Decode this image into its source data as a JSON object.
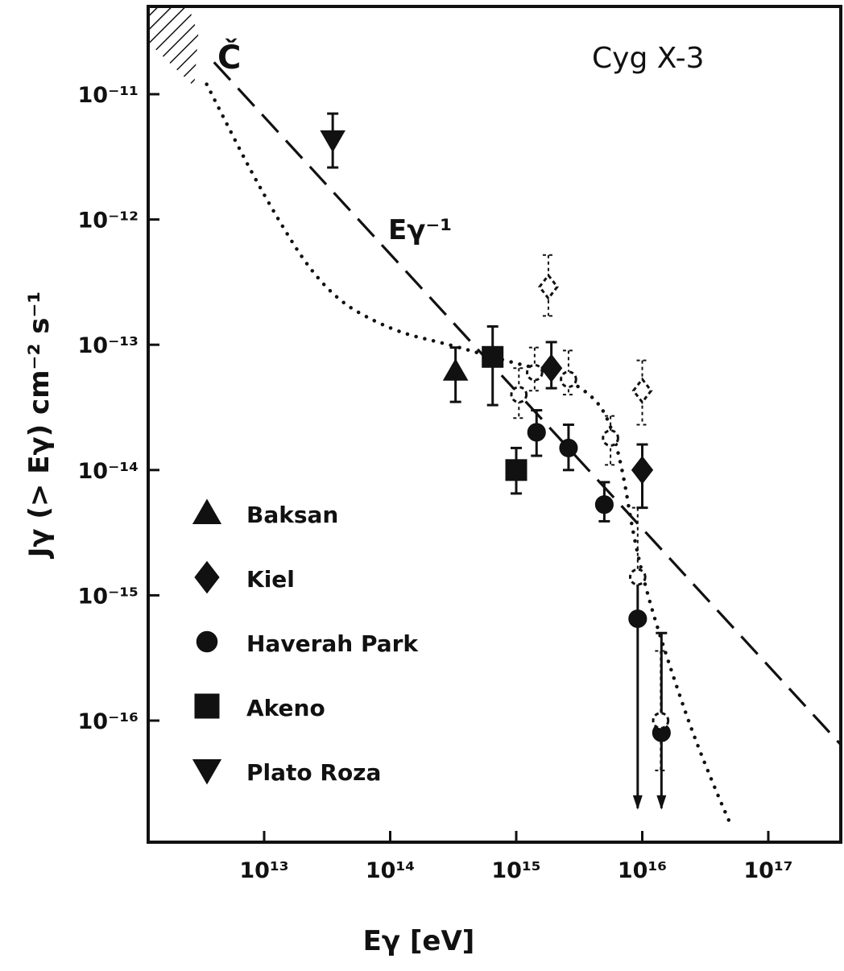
{
  "chart_data": {
    "type": "scatter",
    "title": "Cyg X-3",
    "xlabel": "Eγ [eV]",
    "ylabel": "Jγ (> Eγ) cm⁻² s⁻¹",
    "x_scale": "log",
    "y_scale": "log",
    "xlim": [
      1500000000000.0,
      5e+17
    ],
    "ylim": [
      1e-17,
      5e-11
    ],
    "x_ticks": [
      {
        "value": 10000000000000.0,
        "label": "10¹³"
      },
      {
        "value": 100000000000000.0,
        "label": "10¹⁴"
      },
      {
        "value": 1000000000000000.0,
        "label": "10¹⁵"
      },
      {
        "value": 1e+16,
        "label": "10¹⁶"
      },
      {
        "value": 1e+17,
        "label": "10¹⁷"
      }
    ],
    "y_ticks": [
      {
        "value": 1e-11,
        "label": "10⁻¹¹"
      },
      {
        "value": 1e-12,
        "label": "10⁻¹²"
      },
      {
        "value": 1e-13,
        "label": "10⁻¹³"
      },
      {
        "value": 1e-14,
        "label": "10⁻¹⁴"
      },
      {
        "value": 1e-15,
        "label": "10⁻¹⁵"
      },
      {
        "value": 1e-16,
        "label": "10⁻¹⁶"
      }
    ],
    "annotations": {
      "cherenkov_label": "Č",
      "power_law_label": "Eγ⁻¹"
    },
    "cherenkov_region": {
      "x_range": [
        1500000000000.0,
        3000000000000.0
      ],
      "y_range": [
        1e-11,
        5e-11
      ]
    },
    "power_law_line": {
      "style": "dashed",
      "points": [
        [
          4000000000000.0,
          1.8e-11
        ],
        [
          4e+17,
          6e-17
        ]
      ]
    },
    "dotted_curve": [
      [
        3500000000000.0,
        1.2e-11
      ],
      [
        10000000000000.0,
        1.5e-12
      ],
      [
        30000000000000.0,
        2.6e-13
      ],
      [
        100000000000000.0,
        1.3e-13
      ],
      [
        300000000000000.0,
        1e-13
      ],
      [
        800000000000000.0,
        7.5e-14
      ],
      [
        2000000000000000.0,
        6e-14
      ],
      [
        4000000000000000.0,
        4e-14
      ],
      [
        5500000000000000.0,
        2.5e-14
      ],
      [
        7000000000000000.0,
        1e-14
      ],
      [
        8500000000000000.0,
        3e-15
      ],
      [
        1.1e+16,
        1e-15
      ],
      [
        1.6e+16,
        3e-16
      ],
      [
        2.5e+16,
        8e-17
      ],
      [
        4e+16,
        2.5e-17
      ],
      [
        5e+16,
        1.5e-17
      ]
    ],
    "series": [
      {
        "name": "Baksan",
        "marker": "triangle-up",
        "points": [
          {
            "x": 330000000000000.0,
            "y": 6.2e-14,
            "y_low": 3.5e-14,
            "y_high": 9.5e-14
          }
        ]
      },
      {
        "name": "Kiel",
        "marker": "diamond",
        "points": [
          {
            "x": 1900000000000000.0,
            "y": 6.5e-14,
            "y_low": 4.5e-14,
            "y_high": 1.05e-13
          },
          {
            "x": 1e+16,
            "y": 1e-14,
            "y_low": 5e-15,
            "y_high": 1.6e-14
          }
        ]
      },
      {
        "name": "Haverah Park",
        "marker": "circle",
        "points": [
          {
            "x": 1450000000000000.0,
            "y": 2e-14,
            "y_low": 1.3e-14,
            "y_high": 3e-14
          },
          {
            "x": 2600000000000000.0,
            "y": 1.5e-14,
            "y_low": 1e-14,
            "y_high": 2.3e-14
          },
          {
            "x": 5000000000000000.0,
            "y": 5.3e-15,
            "y_low": 3.9e-15,
            "y_high": 8e-15
          },
          {
            "x": 9200000000000000.0,
            "y": 6.5e-16,
            "y_low": 2e-17,
            "y_high": 1.4e-15,
            "upper_limit": true
          },
          {
            "x": 1.42e+16,
            "y": 8e-17,
            "y_low": 2e-17,
            "y_high": 5e-16,
            "upper_limit": true
          }
        ]
      },
      {
        "name": "Akeno",
        "marker": "square",
        "points": [
          {
            "x": 650000000000000.0,
            "y": 8e-14,
            "y_low": 3.3e-14,
            "y_high": 1.4e-13
          },
          {
            "x": 1000000000000000.0,
            "y": 1e-14,
            "y_low": 6.5e-15,
            "y_high": 1.5e-14
          }
        ]
      },
      {
        "name": "Plato Roza",
        "marker": "triangle-down",
        "points": [
          {
            "x": 35000000000000.0,
            "y": 4.3e-12,
            "y_low": 2.6e-12,
            "y_high": 7e-12
          }
        ]
      },
      {
        "name": "",
        "marker": "open-diamond",
        "points": [
          {
            "x": 1800000000000000.0,
            "y": 2.9e-13,
            "y_low": 1.7e-13,
            "y_high": 5.2e-13
          },
          {
            "x": 1e+16,
            "y": 4.3e-14,
            "y_low": 2.3e-14,
            "y_high": 7.5e-14
          }
        ]
      },
      {
        "name": "",
        "marker": "open-circle",
        "points": [
          {
            "x": 1050000000000000.0,
            "y": 4e-14,
            "y_low": 2.6e-14,
            "y_high": 6.5e-14
          },
          {
            "x": 1400000000000000.0,
            "y": 6e-14,
            "y_low": 4.3e-14,
            "y_high": 9.5e-14
          },
          {
            "x": 2600000000000000.0,
            "y": 5.3e-14,
            "y_low": 4e-14,
            "y_high": 9e-14
          },
          {
            "x": 5600000000000000.0,
            "y": 1.8e-14,
            "y_low": 1.1e-14,
            "y_high": 2.7e-14
          },
          {
            "x": 9200000000000000.0,
            "y": 1.4e-15,
            "y_low": 6e-16,
            "y_high": 5e-15
          },
          {
            "x": 1.4e+16,
            "y": 1e-16,
            "y_low": 4e-17,
            "y_high": 3.6e-16
          }
        ]
      }
    ],
    "legend": {
      "position": "lower-left",
      "entries": [
        {
          "marker": "triangle-up",
          "label": "Baksan"
        },
        {
          "marker": "diamond",
          "label": "Kiel"
        },
        {
          "marker": "circle",
          "label": "Haverah Park"
        },
        {
          "marker": "square",
          "label": "Akeno"
        },
        {
          "marker": "triangle-down",
          "label": "Plato Roza"
        }
      ]
    },
    "grid": false
  }
}
